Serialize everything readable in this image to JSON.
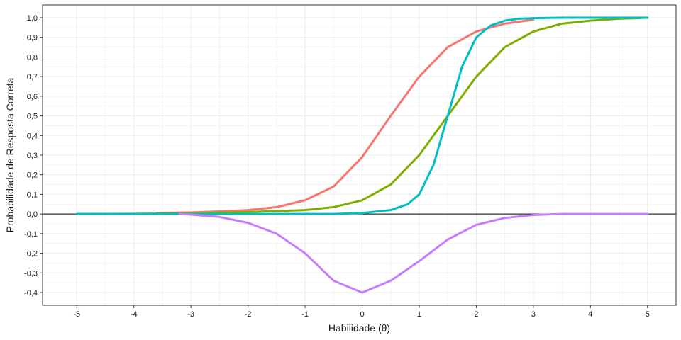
{
  "chart_data": {
    "type": "line",
    "xlabel": "Habilidade (θ)",
    "ylabel": "Probabilidade de Resposta Correta",
    "xlim": [
      -5.6,
      5.5
    ],
    "ylim": [
      -0.465,
      1.065
    ],
    "x_ticks": [
      -5,
      -4,
      -3,
      -2,
      -1,
      0,
      1,
      2,
      3,
      4,
      5
    ],
    "x_tick_labels": [
      "-5",
      "-4",
      "-3",
      "-2",
      "-1",
      "0",
      "1",
      "2",
      "3",
      "4",
      "5"
    ],
    "y_ticks": [
      -0.4,
      -0.3,
      -0.2,
      -0.1,
      0.0,
      0.1,
      0.2,
      0.3,
      0.4,
      0.5,
      0.6,
      0.7,
      0.8,
      0.9,
      1.0
    ],
    "y_tick_labels": [
      "-0,4",
      "-0,3",
      "-0,2",
      "-0,1",
      "0,0",
      "0,1",
      "0,2",
      "0,3",
      "0,4",
      "0,5",
      "0,6",
      "0,7",
      "0,8",
      "0,9",
      "1,0"
    ],
    "grid": true,
    "hline": 0,
    "series": [
      {
        "color": "#F8766D",
        "x": [
          -3.6,
          -3.0,
          -2.5,
          -2.0,
          -1.5,
          -1.0,
          -0.5,
          0.0,
          0.5,
          1.0,
          1.5,
          2.0,
          2.5,
          3.0
        ],
        "y": [
          0.005,
          0.008,
          0.013,
          0.02,
          0.035,
          0.07,
          0.14,
          0.29,
          0.5,
          0.7,
          0.85,
          0.93,
          0.97,
          0.99
        ]
      },
      {
        "color": "#7CAE00",
        "x": [
          -5.0,
          -4.0,
          -3.0,
          -2.5,
          -2.0,
          -1.5,
          -1.0,
          -0.5,
          0.0,
          0.5,
          1.0,
          1.5,
          2.0,
          2.5,
          3.0,
          3.5,
          4.0,
          4.5,
          5.0
        ],
        "y": [
          0.0,
          0.001,
          0.003,
          0.006,
          0.01,
          0.015,
          0.02,
          0.035,
          0.07,
          0.15,
          0.3,
          0.5,
          0.7,
          0.85,
          0.93,
          0.97,
          0.985,
          0.995,
          1.0
        ]
      },
      {
        "color": "#00BFC4",
        "x": [
          -5.0,
          -4.0,
          -3.0,
          -2.0,
          -1.0,
          -0.5,
          0.0,
          0.5,
          0.8,
          1.0,
          1.25,
          1.5,
          1.75,
          2.0,
          2.25,
          2.5,
          2.75,
          3.0,
          3.5,
          4.0,
          5.0
        ],
        "y": [
          0.0,
          0.0,
          0.0,
          0.0,
          0.0,
          0.0,
          0.005,
          0.02,
          0.05,
          0.1,
          0.25,
          0.5,
          0.75,
          0.9,
          0.96,
          0.985,
          0.995,
          0.998,
          1.0,
          1.0,
          1.0
        ]
      },
      {
        "color": "#C77CFF",
        "x": [
          -3.2,
          -3.0,
          -2.5,
          -2.0,
          -1.5,
          -1.0,
          -0.5,
          0.0,
          0.5,
          1.0,
          1.5,
          2.0,
          2.5,
          3.0,
          3.5,
          4.0,
          5.0
        ],
        "y": [
          0.0,
          -0.003,
          -0.015,
          -0.045,
          -0.1,
          -0.2,
          -0.34,
          -0.4,
          -0.34,
          -0.24,
          -0.13,
          -0.055,
          -0.02,
          -0.005,
          0.0,
          0.0,
          0.0
        ]
      }
    ]
  }
}
